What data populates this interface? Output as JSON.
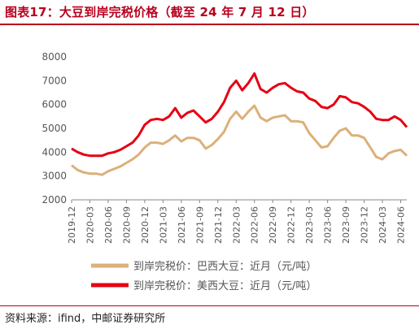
{
  "title": "图表17：大豆到岸完税价格（截至 24 年 7 月 12 日）",
  "source": "资料来源：ifind，中邮证券研究所",
  "colors": {
    "accent": "#b8001e",
    "brazil": "#dcb07a",
    "us": "#e60012"
  },
  "chart_data": {
    "type": "line",
    "xlabel": "",
    "ylabel": "",
    "ylim": [
      2000,
      8000
    ],
    "yticks": [
      2000,
      3000,
      4000,
      5000,
      6000,
      7000,
      8000
    ],
    "xlim": [
      "2019-12",
      "2024-07"
    ],
    "xticks": [
      "2019-12",
      "2020-03",
      "2020-06",
      "2020-09",
      "2020-12",
      "2021-03",
      "2021-06",
      "2021-09",
      "2021-12",
      "2022-03",
      "2022-06",
      "2022-09",
      "2022-12",
      "2023-03",
      "2023-06",
      "2023-09",
      "2023-12",
      "2024-03",
      "2024-06"
    ],
    "grid": false,
    "legend_position": "bottom",
    "series": [
      {
        "name": "到岸完税价：巴西大豆：近月（元/吨）",
        "color": "#dcb07a",
        "points": [
          [
            "2019-12",
            3450
          ],
          [
            "2020-01",
            3250
          ],
          [
            "2020-02",
            3150
          ],
          [
            "2020-03",
            3100
          ],
          [
            "2020-04",
            3100
          ],
          [
            "2020-05",
            3050
          ],
          [
            "2020-06",
            3200
          ],
          [
            "2020-07",
            3300
          ],
          [
            "2020-08",
            3400
          ],
          [
            "2020-09",
            3550
          ],
          [
            "2020-10",
            3700
          ],
          [
            "2020-11",
            3900
          ],
          [
            "2020-12",
            4200
          ],
          [
            "2021-01",
            4400
          ],
          [
            "2021-02",
            4400
          ],
          [
            "2021-03",
            4350
          ],
          [
            "2021-04",
            4500
          ],
          [
            "2021-05",
            4700
          ],
          [
            "2021-06",
            4450
          ],
          [
            "2021-07",
            4600
          ],
          [
            "2021-08",
            4600
          ],
          [
            "2021-09",
            4500
          ],
          [
            "2021-10",
            4150
          ],
          [
            "2021-11",
            4300
          ],
          [
            "2021-12",
            4550
          ],
          [
            "2022-01",
            4850
          ],
          [
            "2022-02",
            5400
          ],
          [
            "2022-03",
            5700
          ],
          [
            "2022-04",
            5400
          ],
          [
            "2022-05",
            5700
          ],
          [
            "2022-06",
            5950
          ],
          [
            "2022-07",
            5450
          ],
          [
            "2022-08",
            5300
          ],
          [
            "2022-09",
            5450
          ],
          [
            "2022-10",
            5500
          ],
          [
            "2022-11",
            5550
          ],
          [
            "2022-12",
            5300
          ],
          [
            "2023-01",
            5300
          ],
          [
            "2023-02",
            5250
          ],
          [
            "2023-03",
            4800
          ],
          [
            "2023-04",
            4500
          ],
          [
            "2023-05",
            4200
          ],
          [
            "2023-06",
            4250
          ],
          [
            "2023-07",
            4600
          ],
          [
            "2023-08",
            4900
          ],
          [
            "2023-09",
            5000
          ],
          [
            "2023-10",
            4700
          ],
          [
            "2023-11",
            4700
          ],
          [
            "2023-12",
            4600
          ],
          [
            "2024-01",
            4200
          ],
          [
            "2024-02",
            3800
          ],
          [
            "2024-03",
            3700
          ],
          [
            "2024-04",
            3950
          ],
          [
            "2024-05",
            4050
          ],
          [
            "2024-06",
            4100
          ],
          [
            "2024-07",
            3850
          ]
        ]
      },
      {
        "name": "到岸完税价：美西大豆：近月（元/吨）",
        "color": "#e60012",
        "points": [
          [
            "2019-12",
            4150
          ],
          [
            "2020-01",
            4000
          ],
          [
            "2020-02",
            3900
          ],
          [
            "2020-03",
            3850
          ],
          [
            "2020-04",
            3850
          ],
          [
            "2020-05",
            3850
          ],
          [
            "2020-06",
            3950
          ],
          [
            "2020-07",
            4000
          ],
          [
            "2020-08",
            4100
          ],
          [
            "2020-09",
            4250
          ],
          [
            "2020-10",
            4400
          ],
          [
            "2020-11",
            4700
          ],
          [
            "2020-12",
            5150
          ],
          [
            "2021-01",
            5350
          ],
          [
            "2021-02",
            5400
          ],
          [
            "2021-03",
            5350
          ],
          [
            "2021-04",
            5500
          ],
          [
            "2021-05",
            5850
          ],
          [
            "2021-06",
            5450
          ],
          [
            "2021-07",
            5650
          ],
          [
            "2021-08",
            5750
          ],
          [
            "2021-09",
            5500
          ],
          [
            "2021-10",
            5250
          ],
          [
            "2021-11",
            5400
          ],
          [
            "2021-12",
            5700
          ],
          [
            "2022-01",
            6100
          ],
          [
            "2022-02",
            6700
          ],
          [
            "2022-03",
            7000
          ],
          [
            "2022-04",
            6600
          ],
          [
            "2022-05",
            6900
          ],
          [
            "2022-06",
            7300
          ],
          [
            "2022-07",
            6650
          ],
          [
            "2022-08",
            6500
          ],
          [
            "2022-09",
            6700
          ],
          [
            "2022-10",
            6850
          ],
          [
            "2022-11",
            6900
          ],
          [
            "2022-12",
            6700
          ],
          [
            "2023-01",
            6550
          ],
          [
            "2023-02",
            6500
          ],
          [
            "2023-03",
            6250
          ],
          [
            "2023-04",
            6150
          ],
          [
            "2023-05",
            5900
          ],
          [
            "2023-06",
            5850
          ],
          [
            "2023-07",
            6000
          ],
          [
            "2023-08",
            6350
          ],
          [
            "2023-09",
            6300
          ],
          [
            "2023-10",
            6100
          ],
          [
            "2023-11",
            6050
          ],
          [
            "2023-12",
            5900
          ],
          [
            "2024-01",
            5700
          ],
          [
            "2024-02",
            5400
          ],
          [
            "2024-03",
            5350
          ],
          [
            "2024-04",
            5350
          ],
          [
            "2024-05",
            5500
          ],
          [
            "2024-06",
            5350
          ],
          [
            "2024-07",
            5050
          ]
        ]
      }
    ]
  }
}
